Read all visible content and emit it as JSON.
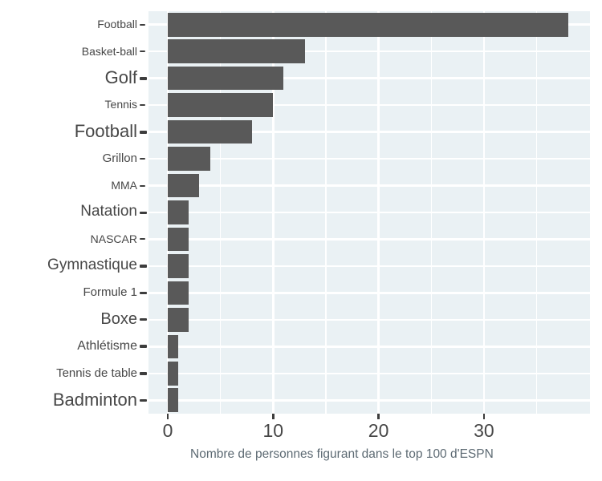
{
  "chart_data": {
    "type": "bar",
    "orientation": "horizontal",
    "title": "",
    "xlabel": "Nombre de personnes figurant dans le top 100 d'ESPN",
    "ylabel": "",
    "categories": [
      "Football",
      "Basket-ball",
      "Golf",
      "Tennis",
      "Football",
      "Grillon",
      "MMA",
      "Natation",
      "NASCAR",
      "Gymnastique",
      "Formule 1",
      "Boxe",
      "Athlétisme",
      "Tennis de table",
      "Badminton"
    ],
    "values": [
      38,
      13,
      11,
      10,
      8,
      4,
      3,
      2,
      2,
      2,
      2,
      2,
      1,
      1,
      1
    ],
    "x_tick_values": [
      0,
      10,
      20,
      30
    ],
    "x_tick_labels": [
      "0",
      "10",
      "20",
      "30"
    ],
    "xlim": [
      -1.9,
      40
    ],
    "minor_tick_values": [
      5,
      15,
      25,
      35
    ],
    "grid": "white major and minor gridlines on shaded panel",
    "legend": null,
    "label_font_px": [
      14,
      14,
      22,
      14,
      22,
      15,
      14,
      19,
      14,
      19,
      15,
      20,
      16,
      15,
      22
    ],
    "y_tick_thickness_px": [
      2,
      2,
      4,
      2,
      4,
      2,
      2,
      3,
      2,
      4,
      3,
      3,
      4,
      4,
      3
    ],
    "colors": {
      "panel_background": "#EAF1F4",
      "gridline": "#FFFFFF",
      "bar": "#595959",
      "axis_text": "#474747",
      "axis_tick_mark": "#3D3D3D",
      "axis_title": "#5D6A73",
      "figure_background": "#FFFFFF"
    }
  }
}
